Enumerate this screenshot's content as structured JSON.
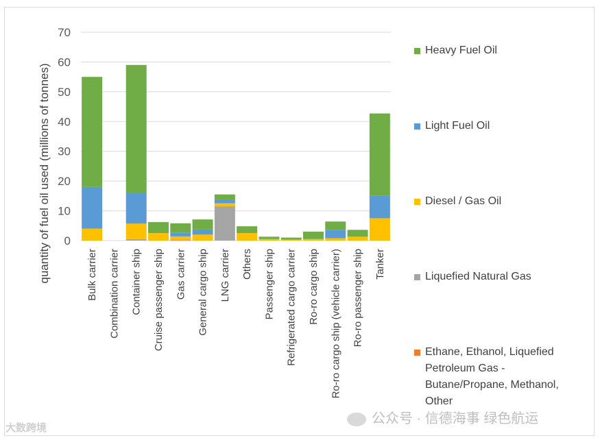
{
  "chart_data": {
    "type": "bar",
    "stacked": true,
    "title": "",
    "xlabel": "",
    "ylabel": "quantity of fuel oil used (millions of tonnes)",
    "ylim": [
      0,
      70
    ],
    "yticks": [
      0,
      10,
      20,
      30,
      40,
      50,
      60,
      70
    ],
    "grid": true,
    "legend_position": "right",
    "categories": [
      "Bulk carrier",
      "Combination carrier",
      "Container ship",
      "Cruise passenger ship",
      "Gas carrier",
      "General cargo ship",
      "LNG carrier",
      "Others",
      "Passenger ship",
      "Refrigerated cargo carrier",
      "Ro-ro cargo ship",
      "Ro-ro cargo ship (vehicle carrier)",
      "Ro-ro passenger ship",
      "Tanker"
    ],
    "series": [
      {
        "name": "Ethane, Ethanol, Liquefied Petroleum Gas - Butane/Propane, Methanol, Other",
        "color": "#ed7d31",
        "values": [
          0,
          0,
          0,
          0,
          0.2,
          0,
          0,
          0,
          0,
          0,
          0,
          0,
          0,
          0
        ]
      },
      {
        "name": "Liquefied Natural Gas",
        "color": "#a5a5a5",
        "values": [
          0,
          0,
          0.5,
          0,
          0,
          0,
          11.5,
          0,
          0,
          0,
          0,
          0,
          0,
          0
        ]
      },
      {
        "name": "Diesel / Gas Oil",
        "color": "#ffc000",
        "values": [
          4,
          0,
          5.2,
          2.5,
          1.2,
          2,
          1,
          2.5,
          0.5,
          0.3,
          0.5,
          0.8,
          1.3,
          7.5
        ]
      },
      {
        "name": "Light Fuel Oil",
        "color": "#5b9bd5",
        "values": [
          14,
          0,
          10.3,
          0,
          1.3,
          1.7,
          1.3,
          0,
          0,
          0,
          0,
          2.7,
          0,
          7.5
        ]
      },
      {
        "name": "Heavy Fuel Oil",
        "color": "#70ad47",
        "values": [
          37,
          0,
          43,
          3.7,
          3.1,
          3.4,
          1.7,
          2.3,
          0.8,
          0.7,
          2.5,
          2.9,
          2.3,
          27.7
        ]
      }
    ]
  },
  "watermarks": {
    "left": "大数跨境",
    "right": "公众号 · 信德海事 绿色航运"
  }
}
